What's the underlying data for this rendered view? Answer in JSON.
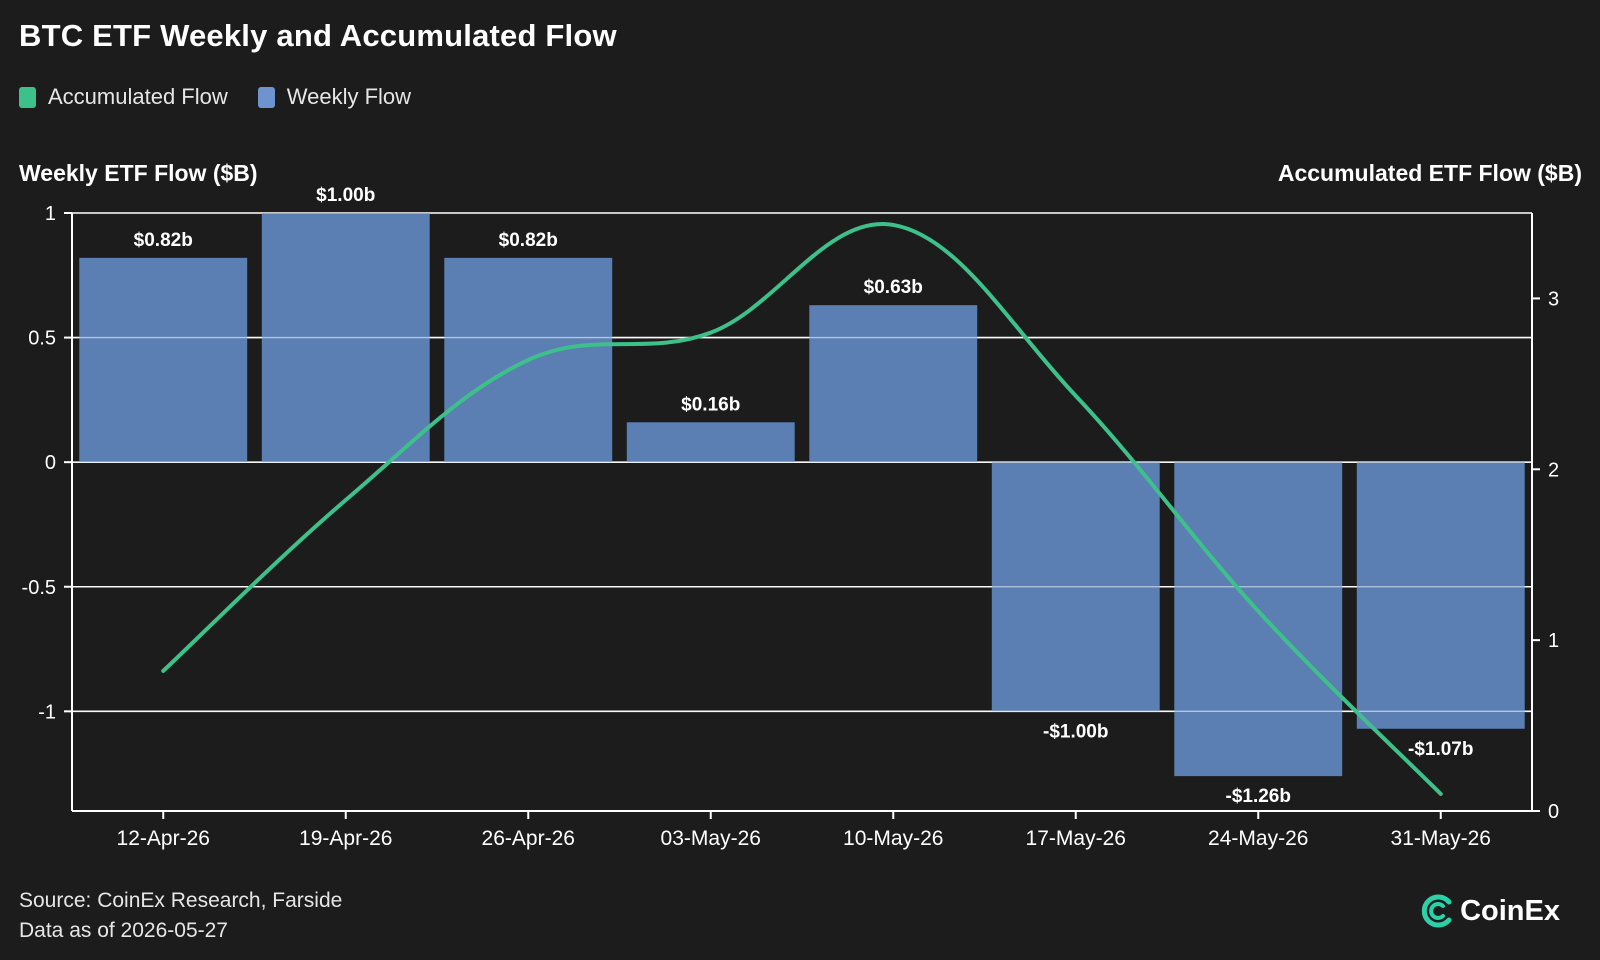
{
  "title": "BTC ETF Weekly and Accumulated Flow",
  "legend": [
    {
      "label": "Accumulated Flow",
      "color": "#3ec08a"
    },
    {
      "label": "Weekly Flow",
      "color": "#6e93cf"
    }
  ],
  "left_axis_title": "Weekly ETF Flow ($B)",
  "right_axis_title": "Accumulated ETF Flow ($B)",
  "source_line": "Source: CoinEx Research, Farside",
  "date_line": "Data as of 2026-05-27",
  "brand": "CoinEx",
  "colors": {
    "background": "#1c1c1c",
    "bar": "#5b7fb3",
    "line": "#3ec08a",
    "grid": "#ffffff"
  },
  "chart_data": {
    "type": "bar",
    "categories": [
      "12-Apr-26",
      "19-Apr-26",
      "26-Apr-26",
      "03-May-26",
      "10-May-26",
      "17-May-26",
      "24-May-26",
      "31-May-26"
    ],
    "series": [
      {
        "name": "Weekly Flow",
        "type": "bar",
        "axis": "left",
        "values": [
          0.82,
          1.0,
          0.82,
          0.16,
          0.63,
          -1.0,
          -1.26,
          -1.07
        ],
        "labels": [
          "$0.82b",
          "$1.00b",
          "$0.82b",
          "$0.16b",
          "$0.63b",
          "-$1.00b",
          "-$1.26b",
          "-$1.07b"
        ]
      },
      {
        "name": "Accumulated Flow",
        "type": "line",
        "axis": "right",
        "values": [
          0.82,
          1.82,
          2.64,
          2.8,
          3.43,
          2.43,
          1.17,
          0.1
        ]
      }
    ],
    "ylabel": "Weekly ETF Flow ($B)",
    "ylabel_right": "Accumulated ETF Flow ($B)",
    "ylim": [
      -1.4,
      1.0
    ],
    "ylim_right": [
      0,
      3.5
    ],
    "yticks": [
      1,
      0.5,
      0,
      -0.5,
      -1
    ],
    "ytick_labels": [
      "1",
      "0.5",
      "0",
      "-0.5",
      "-1"
    ],
    "yticks_right": [
      3,
      2,
      1,
      0
    ],
    "grid": true,
    "legend_position": "top-left"
  }
}
